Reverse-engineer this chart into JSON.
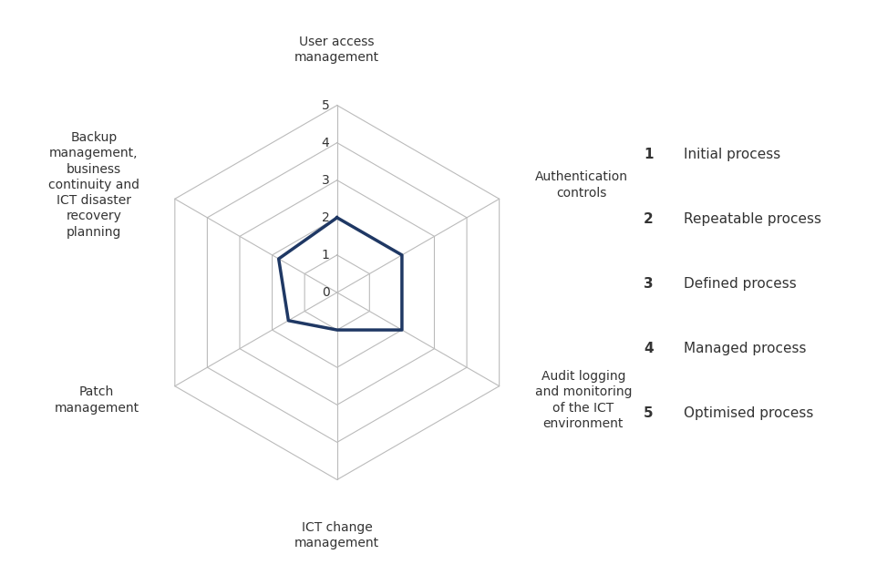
{
  "categories": [
    "User access\nmanagement",
    "Authentication\ncontrols",
    "Audit logging\nand monitoring\nof the ICT\nenvironment",
    "ICT change\nmanagement",
    "Patch\nmanagement",
    "Backup\nmanagement,\nbusiness\ncontinuity and\nICT disaster\nrecovery\nplanning"
  ],
  "values": [
    2.0,
    2.0,
    2.0,
    1.0,
    1.5,
    1.8
  ],
  "max_value": 5,
  "grid_levels": [
    1,
    2,
    3,
    4,
    5
  ],
  "data_color": "#1F3864",
  "grid_color": "#BBBBBB",
  "bg_color": "#FFFFFF",
  "label_color": "#333333",
  "tick_labels": [
    "0",
    "1",
    "2",
    "3",
    "4",
    "5"
  ],
  "legend_items": [
    {
      "number": "1",
      "label": "Initial process"
    },
    {
      "number": "2",
      "label": "Repeatable process"
    },
    {
      "number": "3",
      "label": "Defined process"
    },
    {
      "number": "4",
      "label": "Managed process"
    },
    {
      "number": "5",
      "label": "Optimised process"
    }
  ],
  "cat_fontsize": 10,
  "tick_fontsize": 10,
  "legend_fontsize": 11
}
